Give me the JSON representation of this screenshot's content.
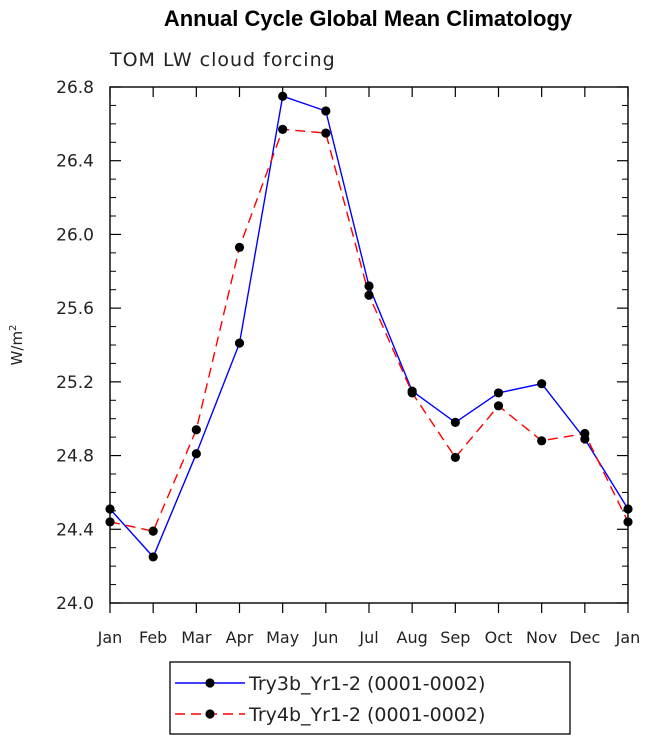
{
  "chart_data": {
    "type": "line",
    "title": "Annual Cycle Global Mean Climatology",
    "subtitle": "TOM LW cloud forcing",
    "ylabel": "W/m",
    "ylabel_sup": "2",
    "xlabel": "",
    "ylim": [
      24.0,
      26.8
    ],
    "yticks": [
      24.0,
      24.4,
      24.8,
      25.2,
      25.6,
      26.0,
      26.4,
      26.8
    ],
    "ytick_labels": [
      "24.0",
      "24.4",
      "24.8",
      "25.2",
      "25.6",
      "26.0",
      "26.4",
      "26.8"
    ],
    "categories": [
      "Jan",
      "Feb",
      "Mar",
      "Apr",
      "May",
      "Jun",
      "Jul",
      "Aug",
      "Sep",
      "Oct",
      "Nov",
      "Dec",
      "Jan"
    ],
    "grid": false,
    "legend_position": "bottom-center",
    "series": [
      {
        "name": "Try3b_Yr1-2 (0001-0002)",
        "color": "#0000ff",
        "line_style": "solid",
        "marker": "filled-circle",
        "values": [
          24.51,
          24.25,
          24.81,
          25.41,
          26.75,
          26.67,
          25.72,
          25.15,
          24.98,
          25.14,
          25.19,
          24.89,
          24.51
        ]
      },
      {
        "name": "Try4b_Yr1-2 (0001-0002)",
        "color": "#ff0000",
        "line_style": "dashed",
        "marker": "filled-circle",
        "values": [
          24.44,
          24.39,
          24.94,
          25.93,
          26.57,
          26.55,
          25.67,
          25.14,
          24.79,
          25.07,
          24.88,
          24.92,
          24.44
        ]
      }
    ]
  }
}
